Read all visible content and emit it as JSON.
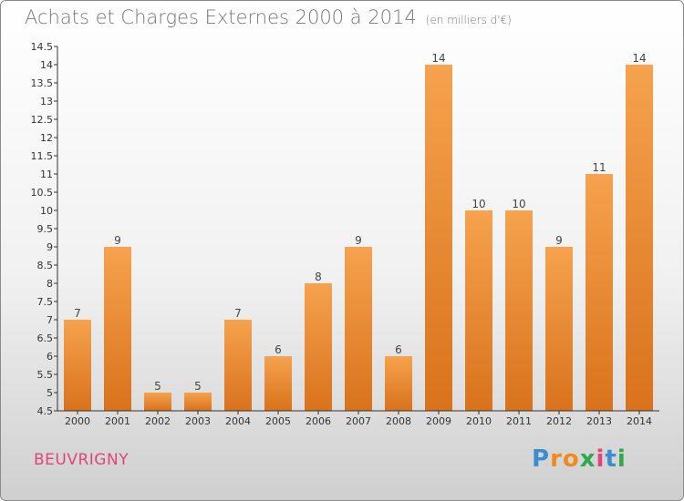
{
  "title": "Achats et Charges Externes 2000 à 2014",
  "unit": "(en milliers d'€)",
  "location": "BEUVRIGNY",
  "logo": {
    "letters": [
      "P",
      "r",
      "o",
      "x",
      "i",
      "t",
      "i"
    ],
    "colors": [
      "#3c8dd0",
      "#f08a1c",
      "#f08a1c",
      "#2fa84f",
      "#e0457a",
      "#3c8dd0",
      "#2fa84f"
    ]
  },
  "colors": {
    "bar_top": "#f6a24e",
    "bar_bottom": "#d9721c",
    "axis": "#333333",
    "label": "#444444"
  },
  "chart_data": {
    "type": "bar",
    "categories": [
      "2000",
      "2001",
      "2002",
      "2003",
      "2004",
      "2005",
      "2006",
      "2007",
      "2008",
      "2009",
      "2010",
      "2011",
      "2012",
      "2013",
      "2014"
    ],
    "values": [
      7,
      9,
      5,
      5,
      7,
      6,
      8,
      9,
      6,
      14,
      10,
      10,
      9,
      11,
      14
    ],
    "data_labels": [
      "7",
      "9",
      "5",
      "5",
      "7",
      "6",
      "8",
      "9",
      "6",
      "14",
      "10",
      "10",
      "9",
      "11",
      "14"
    ],
    "ylim": [
      4.5,
      14.5
    ],
    "yticks": [
      4.5,
      5,
      5.5,
      6,
      6.5,
      7,
      7.5,
      8,
      8.5,
      9,
      9.5,
      10,
      10.5,
      11,
      11.5,
      12,
      12.5,
      13,
      13.5,
      14,
      14.5
    ],
    "ytick_labels": [
      "4.5",
      "5",
      "5.5",
      "6",
      "6.5",
      "7",
      "7.5",
      "8",
      "8.5",
      "9",
      "9.5",
      "10",
      "10.5",
      "11",
      "11.5",
      "12",
      "12.5",
      "13",
      "13.5",
      "14",
      "14.5"
    ],
    "grid": false,
    "title": "Achats et Charges Externes 2000 à 2014",
    "xlabel": "",
    "ylabel": ""
  }
}
